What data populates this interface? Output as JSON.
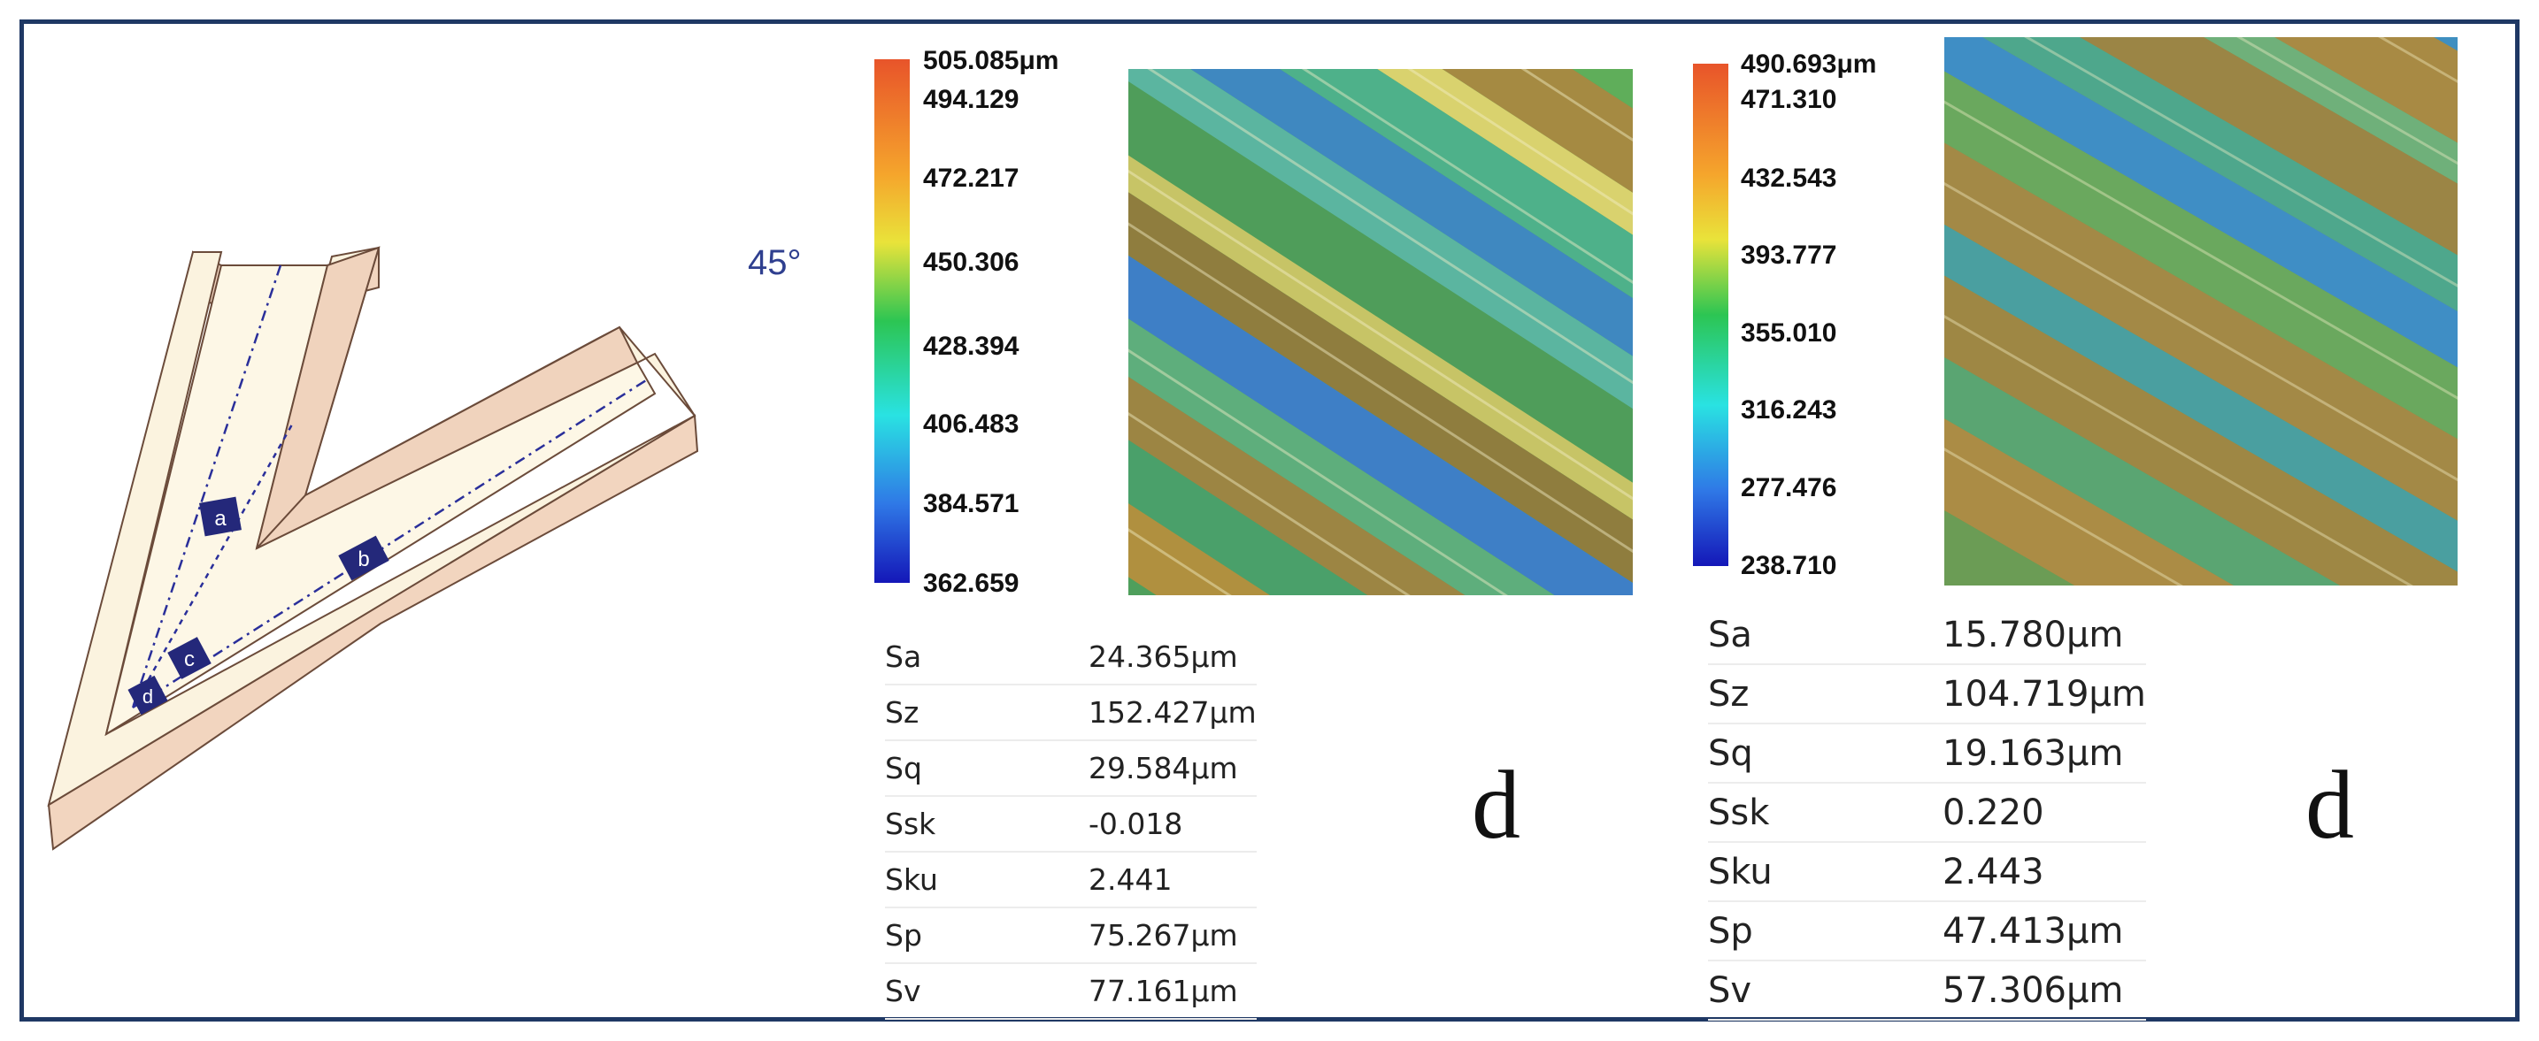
{
  "diagram": {
    "labels": [
      "a",
      "b",
      "c",
      "d"
    ],
    "colors": {
      "top": "#fbf3df",
      "side": "#f2d5bf",
      "edge": "#6b4b3a",
      "marker": "#24287a",
      "path": "#2a2f9a"
    }
  },
  "angle": "45°",
  "panels": [
    {
      "colorbar": {
        "max": "505.085μm",
        "ticks": [
          "494.129",
          "472.217",
          "450.306",
          "428.394",
          "406.483",
          "384.571",
          "362.659"
        ]
      },
      "stats": [
        {
          "key": "Sa",
          "value": "24.365μm"
        },
        {
          "key": "Sz",
          "value": "152.427μm"
        },
        {
          "key": "Sq",
          "value": "29.584μm"
        },
        {
          "key": "Ssk",
          "value": "-0.018"
        },
        {
          "key": "Sku",
          "value": "2.441"
        },
        {
          "key": "Sp",
          "value": "75.267μm"
        },
        {
          "key": "Sv",
          "value": "77.161μm"
        }
      ],
      "letter": "d"
    },
    {
      "colorbar": {
        "max": "490.693μm",
        "ticks": [
          "471.310",
          "432.543",
          "393.777",
          "355.010",
          "316.243",
          "277.476",
          "238.710"
        ]
      },
      "stats": [
        {
          "key": "Sa",
          "value": "15.780μm"
        },
        {
          "key": "Sz",
          "value": "104.719μm"
        },
        {
          "key": "Sq",
          "value": "19.163μm"
        },
        {
          "key": "Ssk",
          "value": "0.220"
        },
        {
          "key": "Sku",
          "value": "2.443"
        },
        {
          "key": "Sp",
          "value": "47.413μm"
        },
        {
          "key": "Sv",
          "value": "57.306μm"
        }
      ],
      "letter": "d"
    }
  ],
  "colorbar_colors": [
    "#e8542a",
    "#f5a52c",
    "#e9e33a",
    "#2cc553",
    "#29e2e2",
    "#2f78e6",
    "#1417b8"
  ]
}
